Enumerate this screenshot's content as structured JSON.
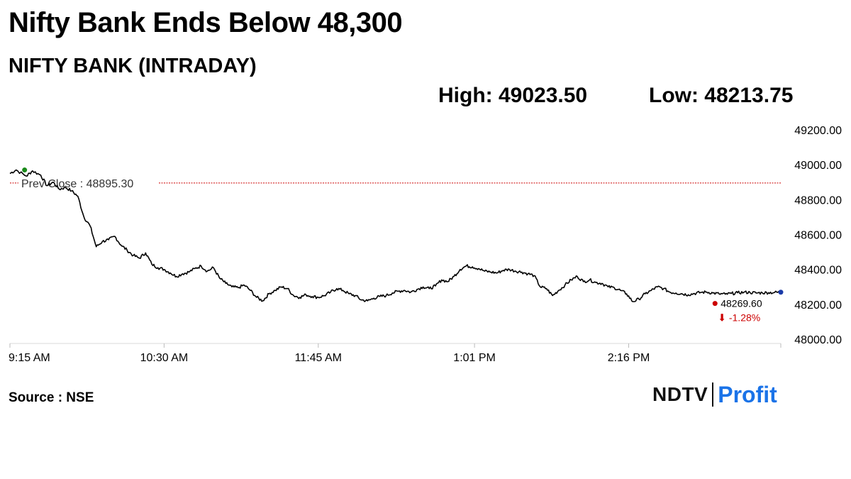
{
  "header": {
    "headline": "Nifty Bank Ends Below 48,300",
    "subtitle": "NIFTY BANK (INTRADAY)",
    "high_text": "High: 49023.50",
    "low_text": "Low: 48213.75"
  },
  "footer": {
    "source": "Source : NSE",
    "brand_ndtv": "NDTV",
    "brand_profit": "Profit"
  },
  "colors": {
    "line": "#000000",
    "prev_close_line": "#cc0000",
    "start_dot": "#1a8a1a",
    "end_dot": "#1a3aa8",
    "close_dot": "#cc0000",
    "change_text": "#cc0000"
  },
  "chart_data": {
    "type": "line",
    "x_tick_labels": [
      "9:15 AM",
      "10:30 AM",
      "11:45 AM",
      "1:01 PM",
      "2:16 PM"
    ],
    "x_tick_minutes": [
      555,
      630,
      705,
      781,
      856
    ],
    "x_range_minutes": [
      555,
      930
    ],
    "y_tick_labels": [
      "49200.00",
      "49000.00",
      "48800.00",
      "48600.00",
      "48400.00",
      "48200.00",
      "48000.00"
    ],
    "y_ticks": [
      49200,
      49000,
      48800,
      48600,
      48400,
      48200,
      48000
    ],
    "ylim": [
      48000,
      49200
    ],
    "prev_close": 48895.3,
    "prev_close_label": "Prev Close : 48895.30",
    "close_value_label": "48269.60",
    "change_label": "⬇ -1.28%",
    "series": [
      {
        "x": [
          555,
          558,
          563,
          566,
          570,
          573,
          576,
          579,
          582,
          585,
          588,
          591,
          594,
          597,
          600,
          603,
          606,
          609,
          612,
          615,
          618,
          621,
          624,
          627,
          630,
          633,
          636,
          639,
          642,
          645,
          648,
          651,
          654,
          657,
          660,
          663,
          666,
          669,
          672,
          675,
          678,
          681,
          684,
          687,
          690,
          693,
          696,
          699,
          702,
          705,
          708,
          711,
          714,
          717,
          720,
          723,
          726,
          729,
          732,
          735,
          738,
          741,
          744,
          747,
          750,
          753,
          756,
          759,
          762,
          765,
          768,
          771,
          774,
          777,
          780,
          783,
          786,
          789,
          792,
          795,
          798,
          801,
          804,
          807,
          810,
          813,
          816,
          819,
          822,
          825,
          828,
          831,
          834,
          837,
          840,
          843,
          846,
          849,
          852,
          855,
          858,
          861,
          864,
          867,
          870,
          873,
          876,
          879,
          882,
          885,
          888,
          891,
          894,
          897,
          900,
          903,
          906,
          909,
          912,
          915,
          918,
          921,
          924,
          927,
          930
        ],
        "y": [
          48950,
          48970,
          48935,
          48965,
          48940,
          48880,
          48900,
          48860,
          48870,
          48850,
          48820,
          48700,
          48650,
          48530,
          48560,
          48570,
          48590,
          48540,
          48510,
          48480,
          48465,
          48495,
          48430,
          48410,
          48400,
          48380,
          48360,
          48375,
          48385,
          48405,
          48420,
          48390,
          48410,
          48350,
          48320,
          48300,
          48295,
          48310,
          48280,
          48240,
          48220,
          48260,
          48280,
          48300,
          48290,
          48250,
          48240,
          48255,
          48245,
          48240,
          48250,
          48270,
          48290,
          48280,
          48260,
          48250,
          48225,
          48220,
          48235,
          48245,
          48250,
          48265,
          48275,
          48280,
          48270,
          48285,
          48300,
          48290,
          48305,
          48340,
          48330,
          48360,
          48400,
          48420,
          48415,
          48405,
          48390,
          48385,
          48380,
          48395,
          48400,
          48390,
          48385,
          48375,
          48365,
          48300,
          48290,
          48250,
          48280,
          48310,
          48340,
          48360,
          48330,
          48340,
          48325,
          48320,
          48300,
          48295,
          48280,
          48260,
          48215,
          48230,
          48260,
          48280,
          48300,
          48290,
          48270,
          48265,
          48260,
          48255,
          48262,
          48268,
          48270,
          48265,
          48260,
          48258,
          48262,
          48266,
          48269,
          48268,
          48265,
          48266,
          48267,
          48268,
          48269.6
        ]
      }
    ]
  }
}
